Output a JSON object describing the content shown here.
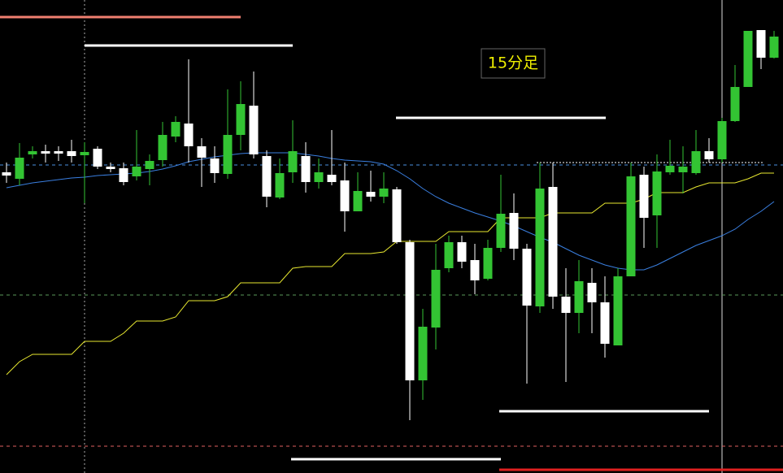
{
  "chart_data": {
    "type": "candlestick",
    "title": "15分足",
    "up_color": "#33c433",
    "down_color": "#ffffff",
    "background": "#000000",
    "ylim": [
      0,
      582
    ],
    "open": [
      370,
      362,
      392,
      396,
      396,
      396,
      391,
      399,
      377,
      375,
      365,
      374,
      385,
      414,
      430,
      402,
      387,
      368,
      416,
      452,
      390,
      339,
      370,
      390,
      358,
      367,
      360,
      322,
      346,
      340,
      349,
      284,
      114,
      179,
      252,
      284,
      262,
      239,
      277,
      320,
      276,
      205,
      352,
      217,
      197,
      234,
      210,
      157,
      242,
      367,
      317,
      370,
      370,
      369,
      396,
      386,
      433,
      475,
      545,
      511
    ],
    "high": [
      382,
      406,
      402,
      404,
      402,
      410,
      407,
      402,
      382,
      382,
      422,
      392,
      432,
      439,
      509,
      412,
      402,
      472,
      482,
      494,
      397,
      387,
      434,
      407,
      387,
      422,
      382,
      370,
      372,
      370,
      352,
      287,
      202,
      282,
      292,
      292,
      282,
      287,
      367,
      344,
      282,
      382,
      382,
      252,
      262,
      252,
      242,
      252,
      382,
      377,
      392,
      410,
      402,
      422,
      412,
      437,
      502,
      544,
      545,
      544
    ],
    "low": [
      357,
      354,
      387,
      382,
      384,
      382,
      332,
      374,
      370,
      354,
      360,
      354,
      377,
      407,
      382,
      352,
      357,
      362,
      397,
      387,
      327,
      337,
      357,
      345,
      350,
      354,
      297,
      322,
      334,
      332,
      282,
      65,
      90,
      152,
      247,
      252,
      220,
      237,
      272,
      262,
      110,
      197,
      202,
      112,
      172,
      172,
      142,
      157,
      242,
      277,
      277,
      367,
      344,
      367,
      382,
      382,
      432,
      475,
      497,
      510
    ],
    "close": [
      366,
      388,
      396,
      393,
      393,
      390,
      395,
      377,
      374,
      358,
      377,
      384,
      416,
      432,
      402,
      388,
      369,
      416,
      454,
      392,
      340,
      369,
      396,
      358,
      370,
      358,
      322,
      347,
      340,
      350,
      284,
      114,
      180,
      250,
      284,
      260,
      237,
      277,
      319,
      276,
      206,
      350,
      217,
      197,
      236,
      210,
      159,
      242,
      365,
      314,
      371,
      378,
      377,
      396,
      386,
      433,
      475,
      544,
      511,
      537
    ],
    "overlays": [
      {
        "color": "#3a7fe0",
        "values": [
          351,
          354,
          357,
          359,
          361,
          363,
          364,
          366,
          367,
          368,
          369,
          371,
          374,
          378,
          383,
          386,
          389,
          391,
          393,
          394,
          394,
          394,
          394,
          392,
          390,
          387,
          385,
          384,
          383,
          380,
          372,
          362,
          350,
          340,
          332,
          326,
          320,
          315,
          310,
          304,
          297,
          290,
          284,
          276,
          268,
          262,
          256,
          252,
          250,
          250,
          256,
          264,
          272,
          280,
          286,
          292,
          300,
          312,
          322,
          334
        ]
      },
      {
        "color": "#e8e830",
        "values": [
          121,
          137,
          146,
          146,
          146,
          146,
          162,
          162,
          162,
          172,
          187,
          187,
          187,
          192,
          212,
          212,
          212,
          217,
          234,
          234,
          234,
          234,
          252,
          254,
          254,
          254,
          270,
          270,
          270,
          272,
          285,
          285,
          285,
          285,
          297,
          297,
          297,
          297,
          314,
          314,
          314,
          314,
          320,
          320,
          320,
          320,
          332,
          332,
          332,
          337,
          345,
          345,
          345,
          352,
          357,
          357,
          357,
          362,
          369,
          369
        ]
      }
    ],
    "levels": [
      {
        "value": 561,
        "color": "#f08070",
        "style": "solid"
      },
      {
        "value": 526,
        "color": "#ffffff",
        "style": "solid"
      },
      {
        "value": 437,
        "color": "#ffffff",
        "style": "solid"
      },
      {
        "value": 76,
        "color": "#ffffff",
        "style": "solid"
      },
      {
        "value": 17,
        "color": "#ffffff",
        "style": "solid"
      },
      {
        "value": 4,
        "color": "#e02020",
        "style": "solid"
      },
      {
        "value": 382,
        "color": "#ffffff",
        "style": "dotted"
      },
      {
        "value": 379,
        "color": "#4a90e0",
        "style": "dashed"
      },
      {
        "value": 219,
        "color": "#5a9a5a",
        "style": "dashed"
      },
      {
        "value": 33,
        "color": "#e06060",
        "style": "dashed"
      }
    ]
  }
}
